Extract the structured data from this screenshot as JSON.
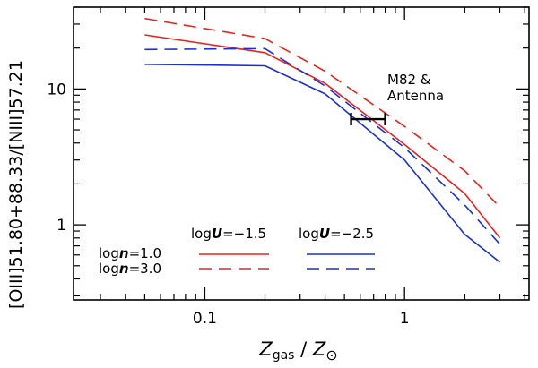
{
  "chart_data": {
    "type": "line",
    "title": "",
    "xlabel_main": "Z",
    "xlabel_sub": "gas",
    "xlabel_sep": " / ",
    "xlabel_main2": "Z",
    "xlabel_sub2": "⊙",
    "ylabel": "[OIII]51.80+88.33/[NIII]57.21",
    "xscale": "log",
    "yscale": "log",
    "xlim": [
      0.022,
      4.2
    ],
    "ylim": [
      0.28,
      40
    ],
    "xticks": [
      {
        "value": 0.1,
        "label": "0.1"
      },
      {
        "value": 1,
        "label": "1"
      }
    ],
    "yticks": [
      {
        "value": 1,
        "label": "1"
      },
      {
        "value": 10,
        "label": "10"
      }
    ],
    "series": [
      {
        "name": "logn=1.0, logU=-1.5",
        "color": "#e8231e",
        "dash": "solid",
        "x": [
          0.05,
          0.2,
          0.4,
          1.0,
          2.0,
          3.0
        ],
        "y": [
          25,
          18.5,
          11,
          3.9,
          1.7,
          0.8
        ]
      },
      {
        "name": "logn=3.0, logU=-1.5",
        "color": "#e8231e",
        "dash": "dashed",
        "x": [
          0.05,
          0.2,
          0.4,
          1.0,
          2.0,
          3.0
        ],
        "y": [
          33,
          23.5,
          13.5,
          5.3,
          2.5,
          1.35
        ]
      },
      {
        "name": "logn=1.0, logU=-2.5",
        "color": "#1c2fd4",
        "dash": "solid",
        "x": [
          0.05,
          0.2,
          0.4,
          1.0,
          2.0,
          3.0
        ],
        "y": [
          15.2,
          14.8,
          9.2,
          3.0,
          0.85,
          0.53
        ]
      },
      {
        "name": "logn=3.0, logU=-2.5",
        "color": "#1c2fd4",
        "dash": "dashed",
        "x": [
          0.05,
          0.2,
          0.4,
          1.0,
          2.0,
          3.0
        ],
        "y": [
          19.5,
          19.8,
          10.5,
          3.7,
          1.4,
          0.72
        ]
      }
    ],
    "error_bar": {
      "label_line1": "M82 &",
      "label_line2": "Antenna",
      "x_low": 0.54,
      "x_high": 0.8,
      "y": 6.0
    },
    "legend": {
      "col_header_1": "log U = −1.5",
      "col_header_1_parts": [
        "log",
        "U",
        "=−1.5"
      ],
      "col_header_2_parts": [
        "log",
        "U",
        "=−2.5"
      ],
      "row_1_parts": [
        "log",
        "n",
        "=1.0"
      ],
      "row_2_parts": [
        "log",
        "n",
        "=3.0"
      ],
      "placement": "bottom-left"
    }
  }
}
